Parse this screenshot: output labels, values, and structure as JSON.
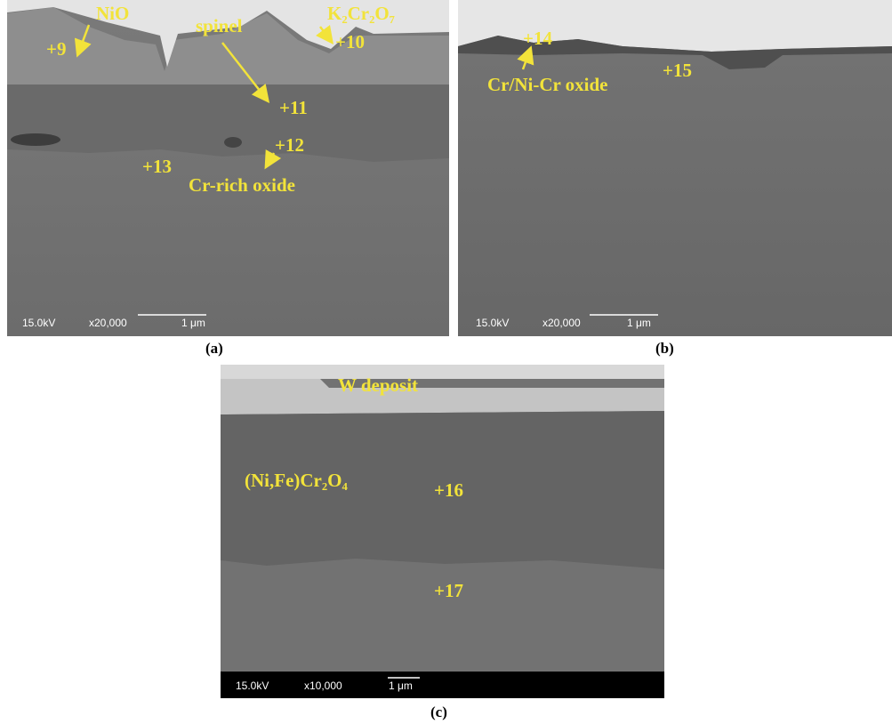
{
  "panels": [
    {
      "caption": "(a)",
      "info": {
        "voltage": "15.0kV",
        "magnification": "x20,000",
        "scale": "1 μm"
      },
      "labels": [
        "NiO",
        "+9",
        "spinel",
        "K₂Cr₂O₇",
        "+10",
        "+11",
        "+12",
        "+13",
        "Cr-rich oxide"
      ]
    },
    {
      "caption": "(b)",
      "info": {
        "voltage": "15.0kV",
        "magnification": "x20,000",
        "scale": "1 μm"
      },
      "labels": [
        "+14",
        "+15",
        "Cr/Ni-Cr oxide"
      ]
    },
    {
      "caption": "(c)",
      "info": {
        "voltage": "15.0kV",
        "magnification": "x10,000",
        "scale": "1 μm"
      },
      "labels": [
        "W deposit",
        "(Ni,Fe)Cr₂O₄",
        "+16",
        "+17"
      ]
    }
  ]
}
